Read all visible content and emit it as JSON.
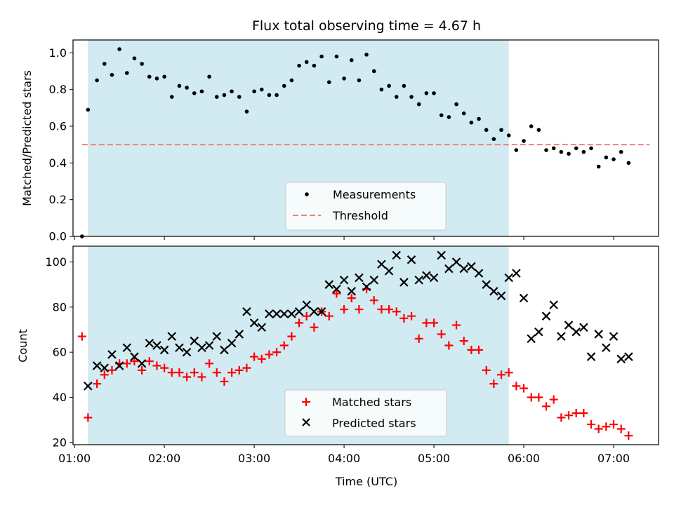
{
  "chart_data": [
    {
      "type": "scatter",
      "title": "Flux total observing time = 4.67 h",
      "xlabel": "",
      "ylabel": "Matched/Predicted stars",
      "ylim": [
        0,
        1.07
      ],
      "yticks": [
        "0.0",
        "0.2",
        "0.4",
        "0.6",
        "0.8",
        "1.0"
      ],
      "xlim": [
        "00:59",
        "07:30"
      ],
      "grid": false,
      "legend_position": "lower-center",
      "shaded_interval": [
        "01:09",
        "05:50"
      ],
      "shaded_color": "#add8e6",
      "threshold": {
        "name": "Threshold",
        "y": 0.5,
        "x_range": [
          "01:05",
          "07:24"
        ],
        "color": "#f08080",
        "style": "dashed"
      },
      "series": [
        {
          "name": "Measurements",
          "marker": "dot",
          "color": "#000000",
          "points": [
            [
              "01:05",
              0.0
            ],
            [
              "01:09",
              0.69
            ],
            [
              "01:15",
              0.85
            ],
            [
              "01:20",
              0.94
            ],
            [
              "01:25",
              0.88
            ],
            [
              "01:30",
              1.02
            ],
            [
              "01:35",
              0.89
            ],
            [
              "01:40",
              0.97
            ],
            [
              "01:45",
              0.94
            ],
            [
              "01:50",
              0.87
            ],
            [
              "01:55",
              0.86
            ],
            [
              "02:00",
              0.87
            ],
            [
              "02:05",
              0.76
            ],
            [
              "02:10",
              0.82
            ],
            [
              "02:15",
              0.81
            ],
            [
              "02:20",
              0.78
            ],
            [
              "02:25",
              0.79
            ],
            [
              "02:30",
              0.87
            ],
            [
              "02:35",
              0.76
            ],
            [
              "02:40",
              0.77
            ],
            [
              "02:45",
              0.79
            ],
            [
              "02:50",
              0.76
            ],
            [
              "02:55",
              0.68
            ],
            [
              "03:00",
              0.79
            ],
            [
              "03:05",
              0.8
            ],
            [
              "03:10",
              0.77
            ],
            [
              "03:15",
              0.77
            ],
            [
              "03:20",
              0.82
            ],
            [
              "03:25",
              0.85
            ],
            [
              "03:30",
              0.93
            ],
            [
              "03:35",
              0.95
            ],
            [
              "03:40",
              0.93
            ],
            [
              "03:45",
              0.98
            ],
            [
              "03:50",
              0.84
            ],
            [
              "03:55",
              0.98
            ],
            [
              "04:00",
              0.86
            ],
            [
              "04:05",
              0.96
            ],
            [
              "04:10",
              0.85
            ],
            [
              "04:15",
              0.99
            ],
            [
              "04:20",
              0.9
            ],
            [
              "04:25",
              0.8
            ],
            [
              "04:30",
              0.82
            ],
            [
              "04:35",
              0.76
            ],
            [
              "04:40",
              0.82
            ],
            [
              "04:45",
              0.76
            ],
            [
              "04:50",
              0.72
            ],
            [
              "04:55",
              0.78
            ],
            [
              "05:00",
              0.78
            ],
            [
              "05:05",
              0.66
            ],
            [
              "05:10",
              0.65
            ],
            [
              "05:15",
              0.72
            ],
            [
              "05:20",
              0.67
            ],
            [
              "05:25",
              0.62
            ],
            [
              "05:30",
              0.64
            ],
            [
              "05:35",
              0.58
            ],
            [
              "05:40",
              0.53
            ],
            [
              "05:45",
              0.58
            ],
            [
              "05:50",
              0.55
            ],
            [
              "05:55",
              0.47
            ],
            [
              "06:00",
              0.52
            ],
            [
              "06:05",
              0.6
            ],
            [
              "06:10",
              0.58
            ],
            [
              "06:15",
              0.47
            ],
            [
              "06:20",
              0.48
            ],
            [
              "06:25",
              0.46
            ],
            [
              "06:30",
              0.45
            ],
            [
              "06:35",
              0.48
            ],
            [
              "06:40",
              0.46
            ],
            [
              "06:45",
              0.48
            ],
            [
              "06:50",
              0.38
            ],
            [
              "06:55",
              0.43
            ],
            [
              "07:00",
              0.42
            ],
            [
              "07:05",
              0.46
            ],
            [
              "07:10",
              0.4
            ]
          ]
        }
      ]
    },
    {
      "type": "scatter",
      "title": "",
      "xlabel": "Time (UTC)",
      "ylabel": "Count",
      "ylim": [
        19,
        107
      ],
      "yticks": [
        "20",
        "40",
        "60",
        "80",
        "100"
      ],
      "xlim": [
        "00:59",
        "07:30"
      ],
      "xticks": [
        "01:00",
        "02:00",
        "03:00",
        "04:00",
        "05:00",
        "06:00",
        "07:00"
      ],
      "grid": false,
      "legend_position": "lower-center",
      "shaded_interval": [
        "01:09",
        "05:50"
      ],
      "shaded_color": "#add8e6",
      "series": [
        {
          "name": "Matched stars",
          "marker": "plus",
          "color": "#ff0000",
          "points": [
            [
              "01:05",
              67
            ],
            [
              "01:09",
              31
            ],
            [
              "01:15",
              46
            ],
            [
              "01:20",
              50
            ],
            [
              "01:25",
              52
            ],
            [
              "01:30",
              55
            ],
            [
              "01:35",
              55
            ],
            [
              "01:40",
              56
            ],
            [
              "01:45",
              52
            ],
            [
              "01:50",
              56
            ],
            [
              "01:55",
              54
            ],
            [
              "02:00",
              53
            ],
            [
              "02:05",
              51
            ],
            [
              "02:10",
              51
            ],
            [
              "02:15",
              49
            ],
            [
              "02:20",
              51
            ],
            [
              "02:25",
              49
            ],
            [
              "02:30",
              55
            ],
            [
              "02:35",
              51
            ],
            [
              "02:40",
              47
            ],
            [
              "02:45",
              51
            ],
            [
              "02:50",
              52
            ],
            [
              "02:55",
              53
            ],
            [
              "03:00",
              58
            ],
            [
              "03:05",
              57
            ],
            [
              "03:10",
              59
            ],
            [
              "03:15",
              60
            ],
            [
              "03:20",
              63
            ],
            [
              "03:25",
              67
            ],
            [
              "03:30",
              73
            ],
            [
              "03:35",
              76
            ],
            [
              "03:40",
              71
            ],
            [
              "03:45",
              78
            ],
            [
              "03:50",
              76
            ],
            [
              "03:55",
              86
            ],
            [
              "04:00",
              79
            ],
            [
              "04:05",
              84
            ],
            [
              "04:10",
              79
            ],
            [
              "04:15",
              88
            ],
            [
              "04:20",
              83
            ],
            [
              "04:25",
              79
            ],
            [
              "04:30",
              79
            ],
            [
              "04:35",
              78
            ],
            [
              "04:40",
              75
            ],
            [
              "04:45",
              76
            ],
            [
              "04:50",
              66
            ],
            [
              "04:55",
              73
            ],
            [
              "05:00",
              73
            ],
            [
              "05:05",
              68
            ],
            [
              "05:10",
              63
            ],
            [
              "05:15",
              72
            ],
            [
              "05:20",
              65
            ],
            [
              "05:25",
              61
            ],
            [
              "05:30",
              61
            ],
            [
              "05:35",
              52
            ],
            [
              "05:40",
              46
            ],
            [
              "05:45",
              50
            ],
            [
              "05:50",
              51
            ],
            [
              "05:55",
              45
            ],
            [
              "06:00",
              44
            ],
            [
              "06:05",
              40
            ],
            [
              "06:10",
              40
            ],
            [
              "06:15",
              36
            ],
            [
              "06:20",
              39
            ],
            [
              "06:25",
              31
            ],
            [
              "06:30",
              32
            ],
            [
              "06:35",
              33
            ],
            [
              "06:40",
              33
            ],
            [
              "06:45",
              28
            ],
            [
              "06:50",
              26
            ],
            [
              "06:55",
              27
            ],
            [
              "07:00",
              28
            ],
            [
              "07:05",
              26
            ],
            [
              "07:10",
              23
            ]
          ]
        },
        {
          "name": "Predicted stars",
          "marker": "x",
          "color": "#000000",
          "points": [
            [
              "01:09",
              45
            ],
            [
              "01:15",
              54
            ],
            [
              "01:20",
              53
            ],
            [
              "01:25",
              59
            ],
            [
              "01:30",
              54
            ],
            [
              "01:35",
              62
            ],
            [
              "01:40",
              58
            ],
            [
              "01:45",
              55
            ],
            [
              "01:50",
              64
            ],
            [
              "01:55",
              63
            ],
            [
              "02:00",
              61
            ],
            [
              "02:05",
              67
            ],
            [
              "02:10",
              62
            ],
            [
              "02:15",
              60
            ],
            [
              "02:20",
              65
            ],
            [
              "02:25",
              62
            ],
            [
              "02:30",
              63
            ],
            [
              "02:35",
              67
            ],
            [
              "02:40",
              61
            ],
            [
              "02:45",
              64
            ],
            [
              "02:50",
              68
            ],
            [
              "02:55",
              78
            ],
            [
              "03:00",
              73
            ],
            [
              "03:05",
              71
            ],
            [
              "03:10",
              77
            ],
            [
              "03:15",
              77
            ],
            [
              "03:20",
              77
            ],
            [
              "03:25",
              77
            ],
            [
              "03:30",
              78
            ],
            [
              "03:35",
              81
            ],
            [
              "03:40",
              78
            ],
            [
              "03:45",
              78
            ],
            [
              "03:50",
              90
            ],
            [
              "03:55",
              88
            ],
            [
              "04:00",
              92
            ],
            [
              "04:05",
              87
            ],
            [
              "04:10",
              93
            ],
            [
              "04:15",
              89
            ],
            [
              "04:20",
              92
            ],
            [
              "04:25",
              99
            ],
            [
              "04:30",
              96
            ],
            [
              "04:35",
              103
            ],
            [
              "04:40",
              91
            ],
            [
              "04:45",
              101
            ],
            [
              "04:50",
              92
            ],
            [
              "04:55",
              94
            ],
            [
              "05:00",
              93
            ],
            [
              "05:05",
              103
            ],
            [
              "05:10",
              97
            ],
            [
              "05:15",
              100
            ],
            [
              "05:20",
              97
            ],
            [
              "05:25",
              98
            ],
            [
              "05:30",
              95
            ],
            [
              "05:35",
              90
            ],
            [
              "05:40",
              87
            ],
            [
              "05:45",
              85
            ],
            [
              "05:50",
              93
            ],
            [
              "05:55",
              95
            ],
            [
              "06:00",
              84
            ],
            [
              "06:05",
              66
            ],
            [
              "06:10",
              69
            ],
            [
              "06:15",
              76
            ],
            [
              "06:20",
              81
            ],
            [
              "06:25",
              67
            ],
            [
              "06:30",
              72
            ],
            [
              "06:35",
              69
            ],
            [
              "06:40",
              71
            ],
            [
              "06:45",
              58
            ],
            [
              "06:50",
              68
            ],
            [
              "06:55",
              62
            ],
            [
              "07:00",
              67
            ],
            [
              "07:05",
              57
            ],
            [
              "07:10",
              58
            ]
          ]
        }
      ]
    }
  ]
}
